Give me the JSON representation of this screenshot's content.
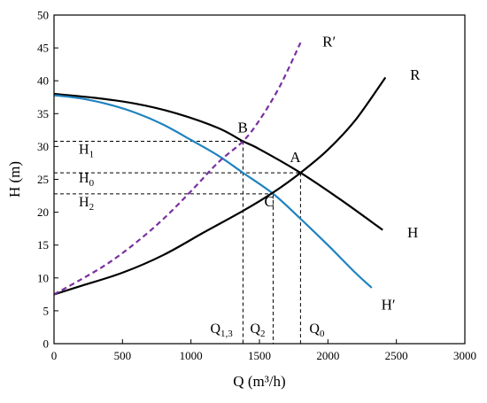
{
  "chart_data": {
    "type": "line",
    "xlabel": "Q (m³/h)",
    "ylabel": "H (m)",
    "xlim": [
      0,
      3000
    ],
    "ylim": [
      0,
      50
    ],
    "xticks": [
      0,
      500,
      1000,
      1500,
      2000,
      2500,
      3000
    ],
    "yticks": [
      0,
      5,
      10,
      15,
      20,
      25,
      30,
      35,
      40,
      45,
      50
    ],
    "grid": false,
    "legend": "none",
    "series": [
      {
        "name": "H",
        "color": "#000000",
        "style": "solid",
        "x": [
          0,
          300,
          600,
          900,
          1200,
          1380,
          1500,
          1800,
          2100,
          2400
        ],
        "y": [
          38,
          37.4,
          36.5,
          35,
          32.8,
          30.8,
          29.6,
          26,
          21.8,
          17.3
        ]
      },
      {
        "name": "H′",
        "color": "#1f82c0",
        "style": "solid",
        "x": [
          0,
          200,
          400,
          600,
          800,
          1000,
          1200,
          1380,
          1600,
          1800,
          2000,
          2200,
          2320
        ],
        "y": [
          37.8,
          37.3,
          36.4,
          35.1,
          33.3,
          31,
          28.6,
          26,
          22.8,
          19,
          15,
          10.8,
          8.5
        ]
      },
      {
        "name": "R",
        "color": "#000000",
        "style": "solid",
        "x": [
          0,
          200,
          500,
          800,
          1100,
          1380,
          1600,
          1800,
          2000,
          2200,
          2420
        ],
        "y": [
          7.5,
          8.8,
          10.8,
          13.5,
          17,
          20.2,
          23,
          26,
          29.5,
          34,
          40.5
        ]
      },
      {
        "name": "R′",
        "color": "#7b2fa0",
        "style": "dashed",
        "x": [
          0,
          200,
          400,
          600,
          800,
          1000,
          1200,
          1380,
          1500,
          1650,
          1800
        ],
        "y": [
          7.5,
          9.8,
          12.3,
          15.4,
          19,
          23.2,
          27.6,
          30.8,
          34,
          39.2,
          45.8
        ]
      }
    ],
    "points": [
      {
        "label": "A",
        "x": 1800,
        "y": 26
      },
      {
        "label": "B",
        "x": 1380,
        "y": 30.8
      },
      {
        "label": "C",
        "x": 1600,
        "y": 22.8
      }
    ],
    "guides": [
      {
        "label": "H",
        "sub": "1",
        "y": 30.8,
        "x": 1380
      },
      {
        "label": "H",
        "sub": "0",
        "y": 26,
        "x": 1800
      },
      {
        "label": "H",
        "sub": "2",
        "y": 22.8,
        "x": 1600
      }
    ],
    "qlabels": [
      {
        "label": "Q",
        "sub": "1,3",
        "x": 1380
      },
      {
        "label": "Q",
        "sub": "2",
        "x": 1600
      },
      {
        "label": "Q",
        "sub": "0",
        "x": 1800
      }
    ],
    "curve_labels": [
      {
        "text": "R′",
        "x": 1960,
        "y": 46
      },
      {
        "text": "R",
        "x": 2600,
        "y": 41
      },
      {
        "text": "H",
        "x": 2580,
        "y": 17
      },
      {
        "text": "H′",
        "x": 2390,
        "y": 6
      }
    ]
  }
}
